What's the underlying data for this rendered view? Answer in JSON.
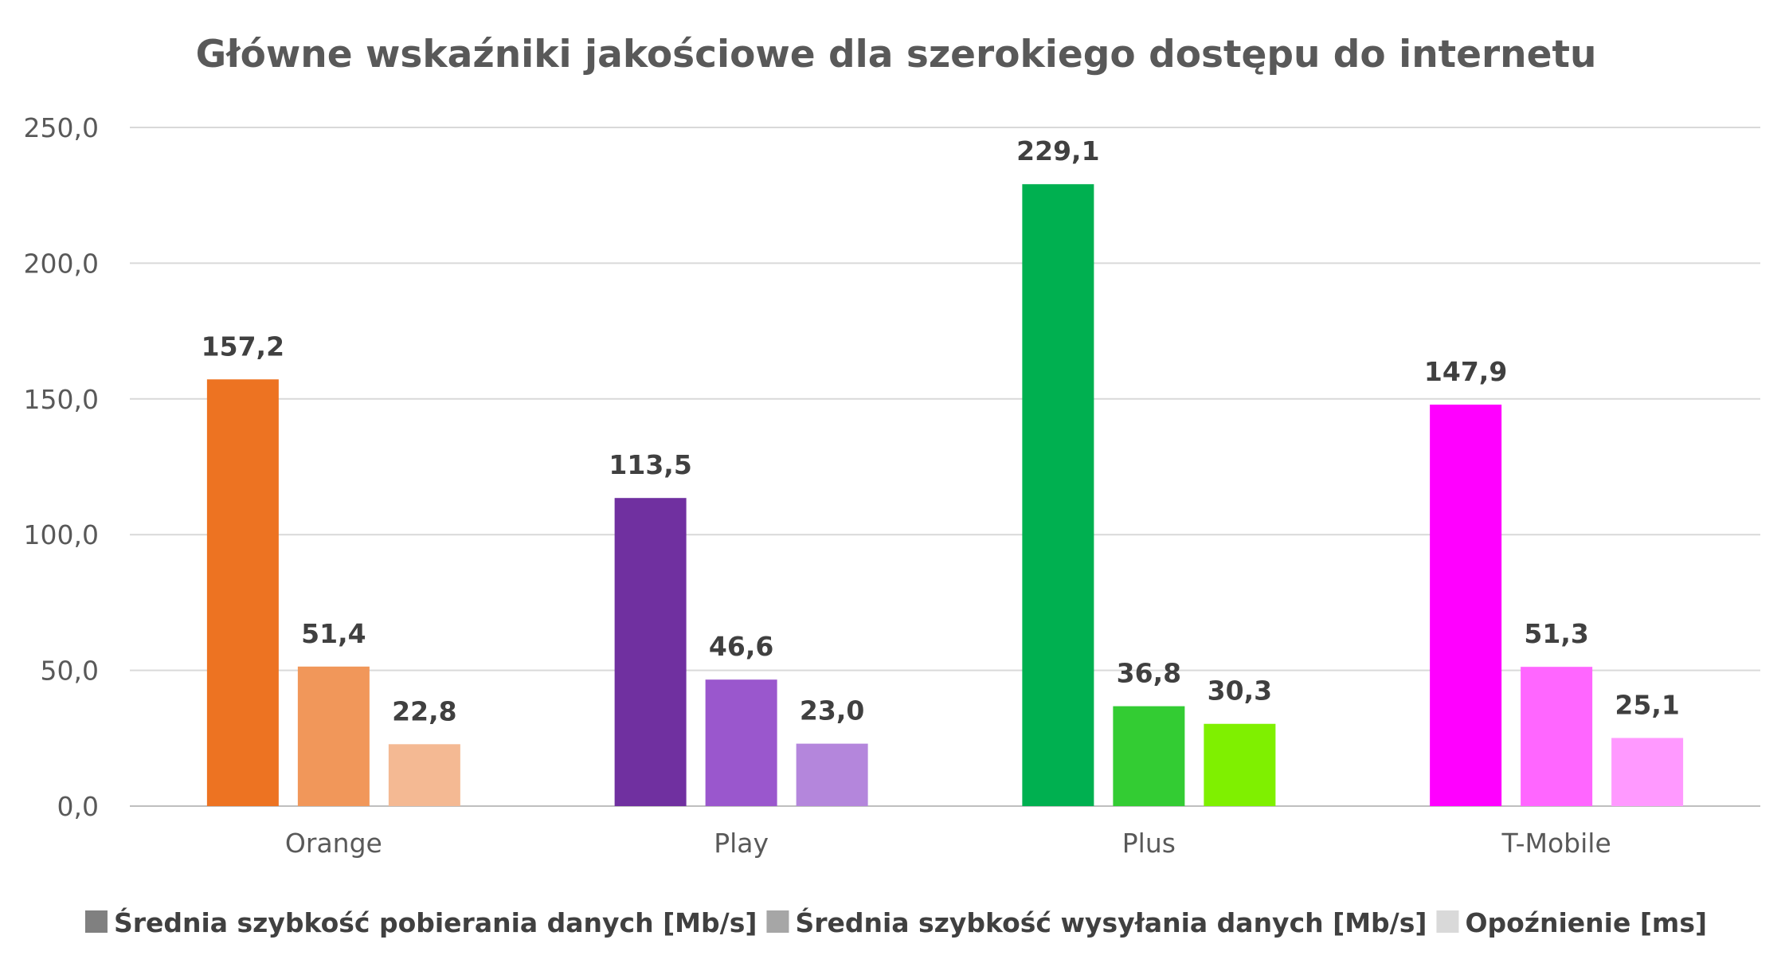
{
  "chart_data": {
    "type": "bar",
    "title": "Główne wskaźniki jakościowe dla szerokiego dostępu do internetu",
    "xlabel": "",
    "ylabel": "",
    "categories": [
      "Orange",
      "Play",
      "Plus",
      "T-Mobile"
    ],
    "series": [
      {
        "name": "Średnia szybkość pobierania danych [Mb/s]",
        "values": [
          157.2,
          113.5,
          229.1,
          147.9
        ],
        "value_labels": [
          "157,2",
          "113,5",
          "229,1",
          "147,9"
        ],
        "legend_color": "#808080",
        "colors": [
          "#ED7322",
          "#7030A0",
          "#00B050",
          "#FF00FF"
        ]
      },
      {
        "name": "Średnia szybkość wysyłania danych [Mb/s]",
        "values": [
          51.4,
          46.6,
          36.8,
          51.3
        ],
        "value_labels": [
          "51,4",
          "46,6",
          "36,8",
          "51,3"
        ],
        "legend_color": "#A6A6A6",
        "colors": [
          "#F1975A",
          "#9A57CD",
          "#33CC33",
          "#FF66FF"
        ]
      },
      {
        "name": "Opoźnienie [ms]",
        "values": [
          22.8,
          23.0,
          30.3,
          25.1
        ],
        "value_labels": [
          "22,8",
          "23,0",
          "30,3",
          "25,1"
        ],
        "legend_color": "#D9D9D9",
        "colors": [
          "#F4B993",
          "#B486DC",
          "#7FF000",
          "#FF99FF"
        ]
      }
    ],
    "ylim": [
      0,
      250
    ],
    "yticks": [
      "0,0",
      "50,0",
      "100,0",
      "150,0",
      "200,0",
      "250,0"
    ],
    "ytick_values": [
      0,
      50,
      100,
      150,
      200,
      250
    ],
    "grid": true,
    "legend_position": "bottom",
    "gridline_color": "#D9D9D9",
    "axis_color": "#BFBFBF",
    "text_color": "#595959",
    "label_color": "#404040"
  }
}
